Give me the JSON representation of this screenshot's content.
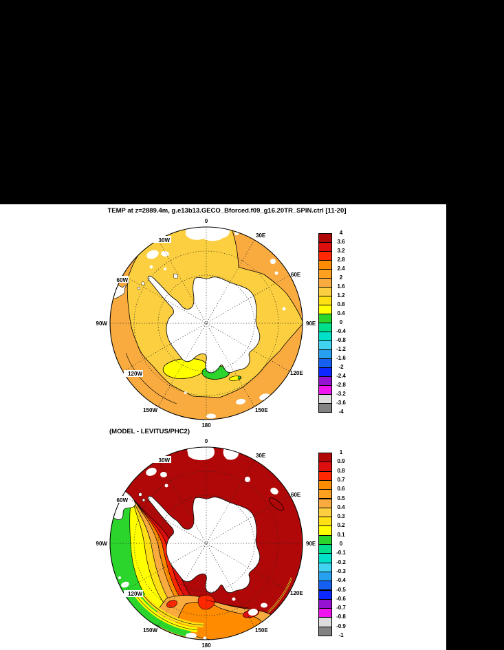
{
  "figure": {
    "title": "TEMP at z=2889.4m, g.e13b13.GECO_Bforced.f09_g16.20TR_SPIN.ctrl [11-20]",
    "subtitle": "(MODEL - LEVITUS/PHC2)"
  },
  "compass": [
    "0",
    "30E",
    "60E",
    "90E",
    "120E",
    "150E",
    "180",
    "150W",
    "120W",
    "90W",
    "60W",
    "30W"
  ],
  "palette": [
    "#b00808",
    "#dc0e0e",
    "#ff2800",
    "#ff8c00",
    "#ffa01e",
    "#f9ab3f",
    "#fbcf3f",
    "#ffe014",
    "#ffff00",
    "#2bd52b",
    "#00e08c",
    "#00e0c8",
    "#41d3f2",
    "#28a0f0",
    "#1560f0",
    "#0a28ff",
    "#9612d2",
    "#f014f0",
    "#dcdcdc",
    "#828282"
  ],
  "colorbars": {
    "top": {
      "labels": [
        "4",
        "3.6",
        "3.2",
        "2.8",
        "2.4",
        "2",
        "1.6",
        "1.2",
        "0.8",
        "0.4",
        "0",
        "-0.4",
        "-0.8",
        "-1.2",
        "-1.6",
        "-2",
        "-2.4",
        "-2.8",
        "-3.2",
        "-3.6",
        "-4"
      ]
    },
    "bottom": {
      "labels": [
        "1",
        "0.9",
        "0.8",
        "0.7",
        "0.6",
        "0.5",
        "0.4",
        "0.3",
        "0.2",
        "0.1",
        "0",
        "-0.1",
        "-0.2",
        "-0.3",
        "-0.4",
        "-0.5",
        "-0.6",
        "-0.7",
        "-0.8",
        "-0.9",
        "-1"
      ]
    }
  },
  "chart_data": [
    {
      "type": "heatmap",
      "subtype": "polar-stereographic-contour-map",
      "title": "TEMP at z=2889.4m, g.e13b13.GECO_Bforced.f09_g16.20TR_SPIN.ctrl [11-20]",
      "variable": "TEMP",
      "depth": "z=2889.4m",
      "averaging_window": "[11-20]",
      "projection": {
        "pole": "South",
        "longitude_labels": [
          "0",
          "30E",
          "60E",
          "90E",
          "120E",
          "150E",
          "180",
          "150W",
          "120W",
          "90W",
          "60W",
          "30W"
        ],
        "dotted_latitude_circles": 2
      },
      "contour_levels": [
        4,
        3.6,
        3.2,
        2.8,
        2.4,
        2,
        1.6,
        1.2,
        0.8,
        0.4,
        0,
        -0.4,
        -0.8,
        -1.2,
        -1.6,
        -2,
        -2.4,
        -2.8,
        -3.2,
        -3.6,
        -4
      ],
      "legend_position": "right",
      "regions": [
        {
          "area": "most of Southern Ocean interior",
          "value_range": "1.2 to 1.6"
        },
        {
          "area": "outer rim ring, Atlantic/Indian/Pacific sectors",
          "value_range": "1.6 to 2.4"
        },
        {
          "area": "Ross Sea shelf (120W-180)",
          "value_range": "0.4 to 1.2 (yellow patch)"
        },
        {
          "area": "coastal Ross Sea",
          "value_range": "0 to 0.4 (green patch)"
        },
        {
          "area": "Antarctica continent",
          "value_range": "no data (white)"
        }
      ]
    },
    {
      "type": "heatmap",
      "subtype": "polar-stereographic-contour-map",
      "title": "(MODEL - LEVITUS/PHC2)",
      "variable": "TEMP difference",
      "contour_levels": [
        1,
        0.9,
        0.8,
        0.7,
        0.6,
        0.5,
        0.4,
        0.3,
        0.2,
        0.1,
        0,
        -0.1,
        -0.2,
        -0.3,
        -0.4,
        -0.5,
        -0.6,
        -0.7,
        -0.8,
        -0.9,
        -1
      ],
      "legend_position": "right",
      "regions": [
        {
          "area": "most of Southern Ocean",
          "value_range": "> 1 (dark red)"
        },
        {
          "area": "southeast Pacific sector (60W-150W)",
          "value_range": "0.1 to 0.9 banded gradient green→yellow→orange→red toward interior"
        },
        {
          "area": "Ross Sea / Pacific-Antarctic sector (150W-150E)",
          "value_range": "0.2 to 0.7 (green/yellow rim bands with orange tongue)"
        },
        {
          "area": "Antarctica continent and South America tip",
          "value_range": "no data (white)"
        }
      ]
    }
  ]
}
